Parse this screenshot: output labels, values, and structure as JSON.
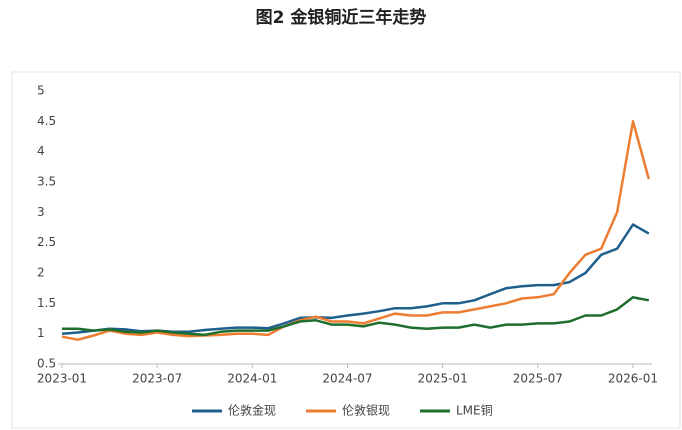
{
  "chart_data": {
    "type": "line",
    "title": "图2 金银铜近三年走势",
    "categories": [
      "2023-01",
      null,
      null,
      null,
      null,
      null,
      "2023-07",
      null,
      null,
      null,
      null,
      null,
      "2024-01",
      null,
      null,
      null,
      null,
      null,
      "2024-07",
      null,
      null,
      null,
      null,
      null,
      "2025-01",
      null,
      null,
      null,
      null,
      null,
      "2025-07",
      null,
      null,
      null,
      null,
      null,
      "2026-01",
      null
    ],
    "series": [
      {
        "name": "伦敦金现",
        "color": "#1f5f8b",
        "values": [
          1.0,
          1.02,
          1.05,
          1.08,
          1.07,
          1.04,
          1.05,
          1.03,
          1.03,
          1.06,
          1.08,
          1.1,
          1.1,
          1.09,
          1.17,
          1.26,
          1.27,
          1.26,
          1.3,
          1.33,
          1.37,
          1.42,
          1.42,
          1.45,
          1.5,
          1.5,
          1.55,
          1.65,
          1.75,
          1.78,
          1.8,
          1.8,
          1.85,
          2.0,
          2.3,
          2.4,
          2.8,
          2.65
        ]
      },
      {
        "name": "伦敦银现",
        "color": "#ed7d31",
        "values": [
          0.95,
          0.9,
          0.97,
          1.05,
          1.0,
          0.98,
          1.02,
          0.98,
          0.96,
          0.97,
          0.98,
          1.0,
          1.0,
          0.98,
          1.12,
          1.22,
          1.28,
          1.2,
          1.2,
          1.17,
          1.25,
          1.33,
          1.3,
          1.3,
          1.35,
          1.35,
          1.4,
          1.45,
          1.5,
          1.58,
          1.6,
          1.65,
          2.0,
          2.3,
          2.4,
          3.0,
          4.5,
          3.55
        ]
      },
      {
        "name": "LME铜",
        "color": "#1e6e2e",
        "values": [
          1.08,
          1.08,
          1.05,
          1.07,
          1.03,
          1.02,
          1.05,
          1.02,
          1.0,
          0.98,
          1.03,
          1.05,
          1.05,
          1.05,
          1.12,
          1.2,
          1.22,
          1.15,
          1.15,
          1.12,
          1.18,
          1.15,
          1.1,
          1.08,
          1.1,
          1.1,
          1.15,
          1.1,
          1.15,
          1.15,
          1.17,
          1.17,
          1.2,
          1.3,
          1.3,
          1.4,
          1.6,
          1.55
        ]
      }
    ],
    "ylim": [
      0.5,
      5
    ],
    "yticks": [
      0.5,
      1,
      1.5,
      2,
      2.5,
      3,
      3.5,
      4,
      4.5,
      5
    ],
    "grid": false,
    "legend": "bottom"
  }
}
